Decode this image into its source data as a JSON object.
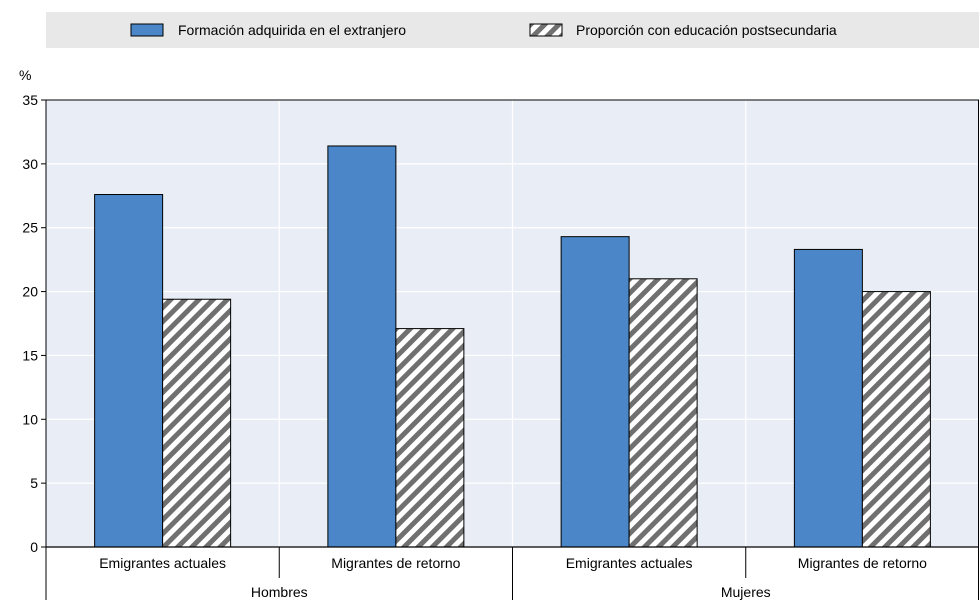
{
  "colors": {
    "legend_bg": "#e8e8e8",
    "plot_bg": "#e9eef6",
    "series1": "#4a86c8",
    "series2_stripe": "#707070",
    "series2_base": "#ffffff",
    "grid": "#ffffff",
    "axis": "#000000"
  },
  "chart_data": {
    "type": "bar",
    "y_unit": "%",
    "ylim": [
      0,
      35
    ],
    "y_ticks": [
      0,
      5,
      10,
      15,
      20,
      25,
      30,
      35
    ],
    "grid": true,
    "legend_position": "top",
    "groups": [
      {
        "label": "Hombres",
        "categories": [
          "Emigrantes actuales",
          "Migrantes de retorno"
        ]
      },
      {
        "label": "Mujeres",
        "categories": [
          "Emigrantes actuales",
          "Migrantes de retorno"
        ]
      }
    ],
    "series": [
      {
        "name": "Formación adquirida en el extranjero",
        "pattern": "solid",
        "values": [
          27.6,
          31.4,
          24.3,
          23.3
        ]
      },
      {
        "name": "Proporción con educación postsecundaria",
        "pattern": "hatched",
        "values": [
          19.4,
          17.1,
          21.0,
          20.0
        ]
      }
    ]
  }
}
